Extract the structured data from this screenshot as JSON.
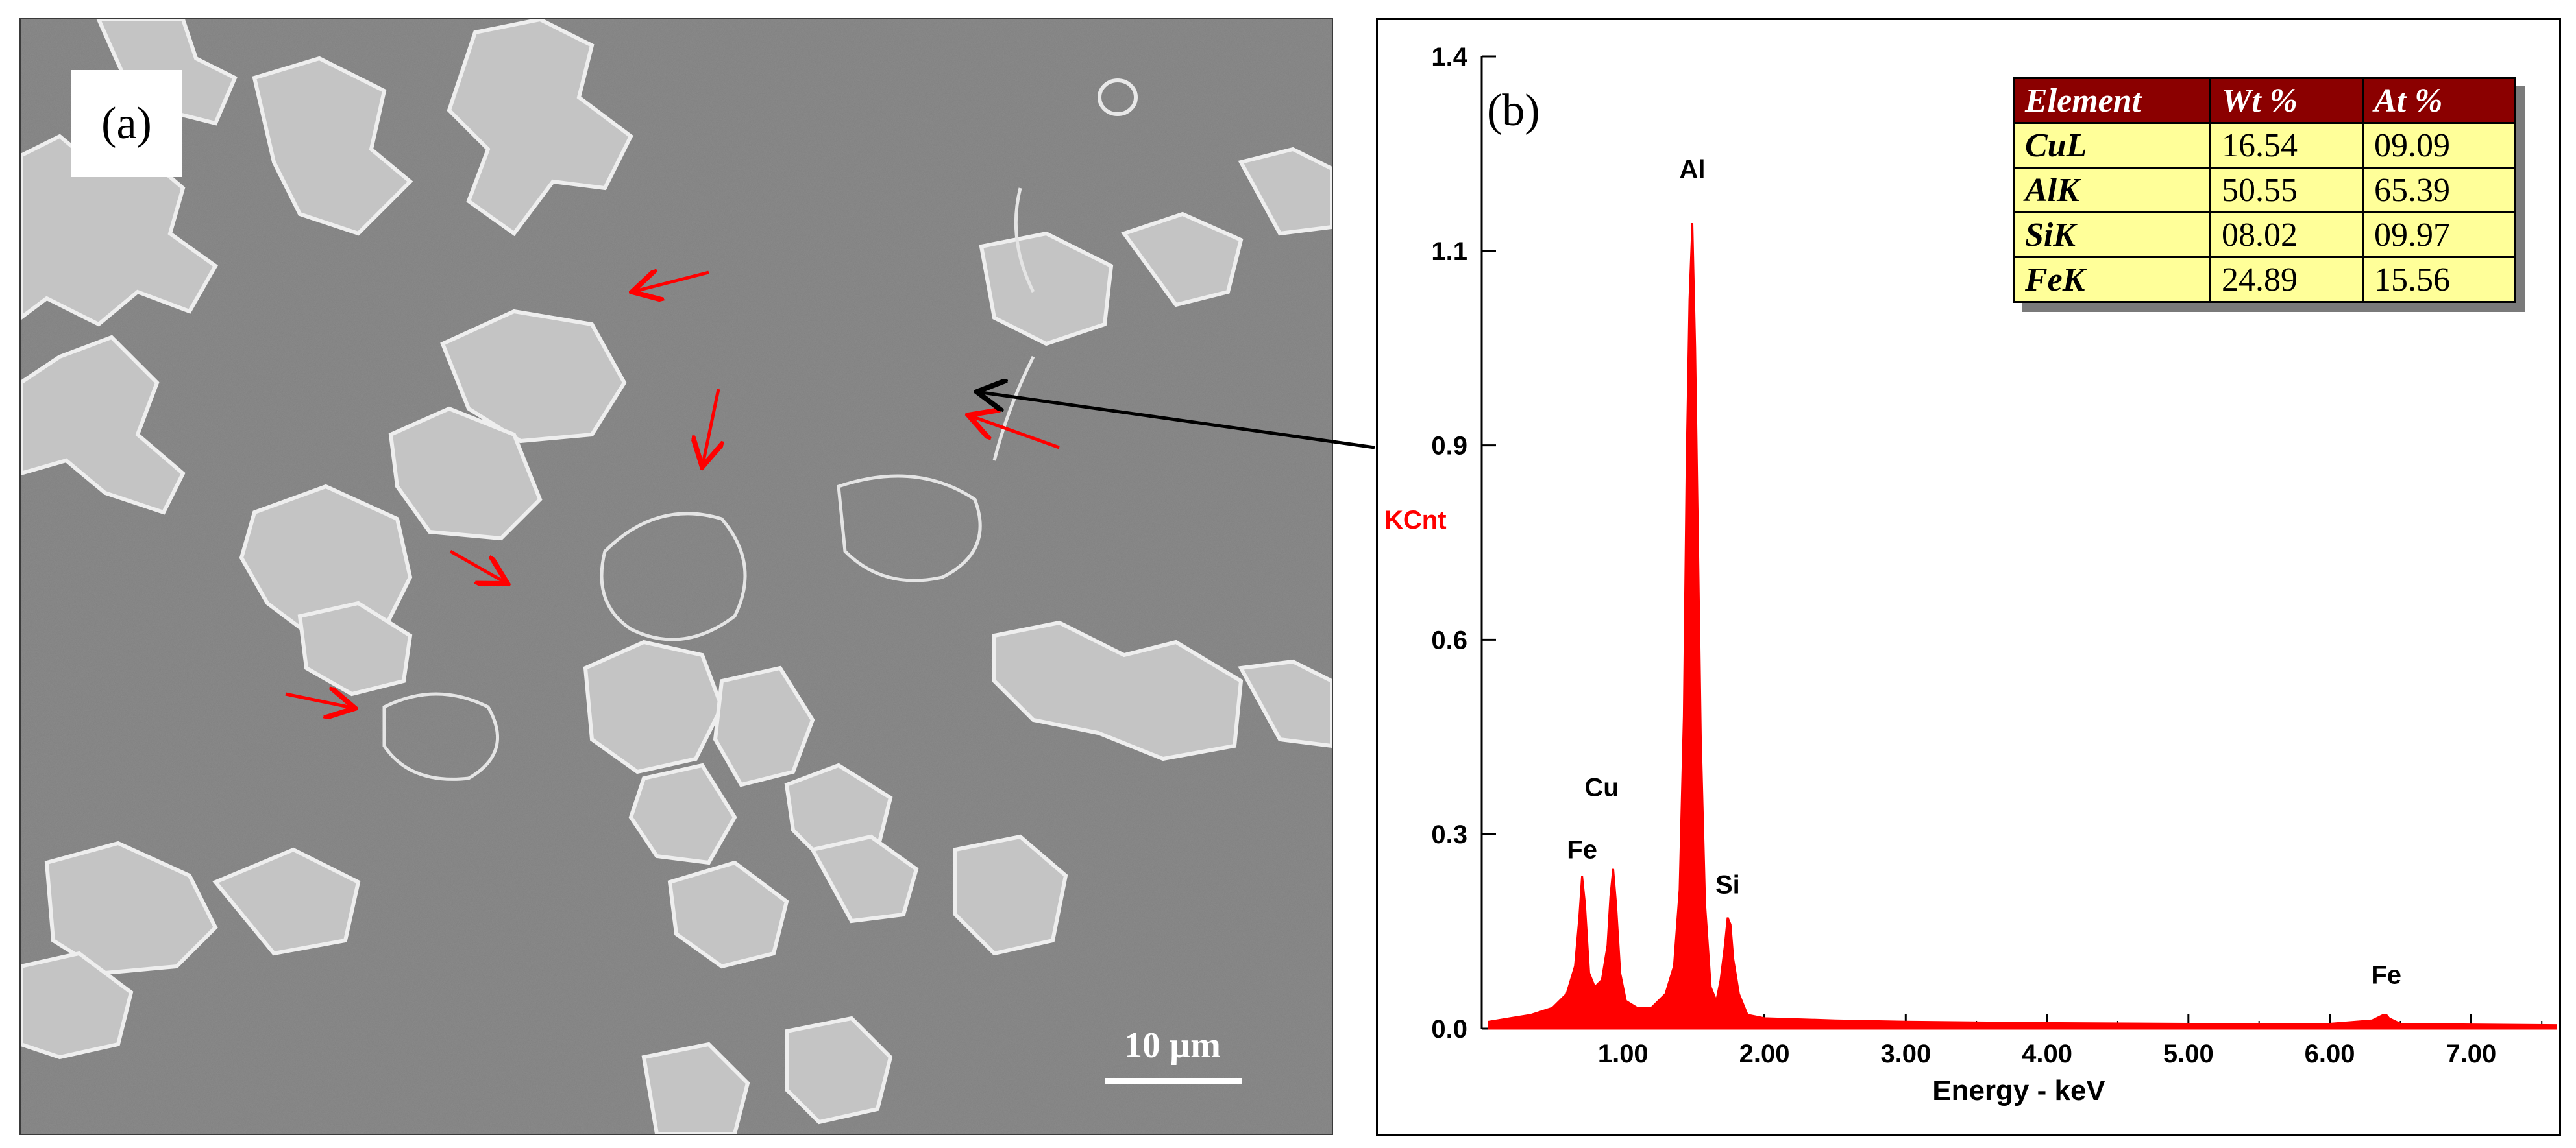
{
  "panel_a": {
    "label": "(a)",
    "scale_bar_label": "10 µm"
  },
  "panel_b": {
    "label": "(b)",
    "table": {
      "headers": [
        "Element",
        "Wt %",
        "At %"
      ],
      "rows": [
        {
          "element": "CuL",
          "wt": "16.54",
          "at": "09.09"
        },
        {
          "element": "AlK",
          "wt": "50.55",
          "at": "65.39"
        },
        {
          "element": "SiK",
          "wt": "08.02",
          "at": "09.97"
        },
        {
          "element": "FeK",
          "wt": "24.89",
          "at": "15.56"
        }
      ]
    }
  },
  "colors": {
    "spectrum": "#ff0000",
    "table_header_bg": "#8b0000",
    "table_cell_bg": "#ffff99",
    "arrow_red": "#ff0000",
    "arrow_black": "#000000"
  },
  "chart_data": {
    "type": "line",
    "xlabel": "Energy - keV",
    "ylabel": "KCnt",
    "xlim": [
      0,
      7.6
    ],
    "ylim": [
      0,
      1.4
    ],
    "x_ticks": [
      "1.00",
      "2.00",
      "3.00",
      "4.00",
      "5.00",
      "6.00",
      "7.00"
    ],
    "x_tick_values": [
      1,
      2,
      3,
      4,
      5,
      6,
      7
    ],
    "y_ticks": [
      "0.0",
      "0.3",
      "0.6",
      "0.9",
      "1.1",
      "1.4"
    ],
    "y_tick_values": [
      0.0,
      0.28,
      0.56,
      0.84,
      1.12,
      1.4
    ],
    "peaks": [
      {
        "label": "Fe",
        "x": 0.71,
        "y": 0.22
      },
      {
        "label": "Cu",
        "x": 0.93,
        "y": 0.23
      },
      {
        "label": "Al",
        "x": 1.49,
        "y": 1.16
      },
      {
        "label": "Si",
        "x": 1.74,
        "y": 0.16
      },
      {
        "label": "Fe",
        "x": 6.4,
        "y": 0.02
      }
    ],
    "peak_label_positions": [
      {
        "label": "Fe",
        "x": 0.71,
        "y": 0.23
      },
      {
        "label": "Cu",
        "x": 0.85,
        "y": 0.32
      },
      {
        "label": "Al",
        "x": 1.49,
        "y": 1.21
      },
      {
        "label": "Si",
        "x": 1.74,
        "y": 0.18
      },
      {
        "label": "Fe",
        "x": 6.4,
        "y": 0.05
      }
    ],
    "series": [
      {
        "x": [
          0.05,
          0.2,
          0.35,
          0.5,
          0.6,
          0.66,
          0.69,
          0.71,
          0.73,
          0.76,
          0.8,
          0.85,
          0.89,
          0.91,
          0.93,
          0.95,
          0.98,
          1.02,
          1.1,
          1.2,
          1.3,
          1.36,
          1.4,
          1.43,
          1.45,
          1.47,
          1.49,
          1.51,
          1.53,
          1.55,
          1.58,
          1.62,
          1.66,
          1.69,
          1.72,
          1.74,
          1.76,
          1.78,
          1.82,
          1.88,
          2.0,
          2.5,
          3.0,
          4.0,
          5.0,
          6.0,
          6.3,
          6.38,
          6.4,
          6.42,
          6.5,
          7.0,
          7.6
        ],
        "y": [
          0.01,
          0.015,
          0.02,
          0.03,
          0.05,
          0.09,
          0.16,
          0.22,
          0.18,
          0.08,
          0.06,
          0.07,
          0.12,
          0.19,
          0.23,
          0.18,
          0.08,
          0.04,
          0.03,
          0.03,
          0.05,
          0.09,
          0.2,
          0.45,
          0.82,
          1.05,
          1.16,
          0.98,
          0.7,
          0.42,
          0.18,
          0.06,
          0.04,
          0.07,
          0.12,
          0.16,
          0.15,
          0.1,
          0.05,
          0.02,
          0.015,
          0.012,
          0.01,
          0.008,
          0.007,
          0.007,
          0.012,
          0.02,
          0.02,
          0.015,
          0.007,
          0.006,
          0.005
        ]
      }
    ]
  }
}
